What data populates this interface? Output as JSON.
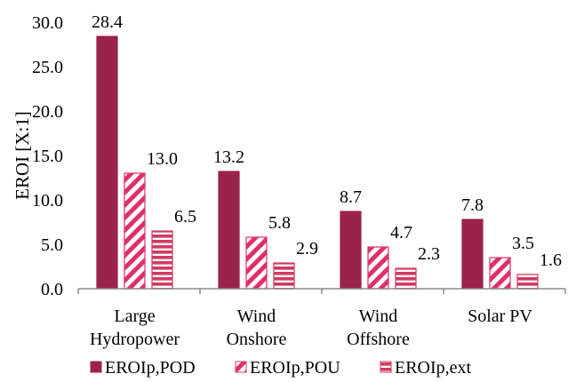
{
  "chart_data": {
    "type": "bar",
    "ylabel": "EROI [X:1]",
    "ylim": [
      0,
      30
    ],
    "yticks": [
      "0.0",
      "5.0",
      "10.0",
      "15.0",
      "20.0",
      "25.0",
      "30.0"
    ],
    "categories": [
      [
        "Large",
        "Hydropower"
      ],
      [
        "Wind",
        "Onshore"
      ],
      [
        "Wind",
        "Offshore"
      ],
      [
        "Solar PV"
      ]
    ],
    "series": [
      {
        "name": "EROIp,POD",
        "values": [
          28.4,
          13.2,
          8.7,
          7.8
        ],
        "labels": [
          "28.4",
          "13.2",
          "8.7",
          "7.8"
        ],
        "color": "#9b2248",
        "pattern": "solid"
      },
      {
        "name": "EROIp,POU",
        "values": [
          13.0,
          5.8,
          4.7,
          3.5
        ],
        "labels": [
          "13.0",
          "5.8",
          "4.7",
          "3.5"
        ],
        "color": "#e0306a",
        "pattern": "diagonal"
      },
      {
        "name": "EROIp,ext",
        "values": [
          6.5,
          2.9,
          2.3,
          1.6
        ],
        "labels": [
          "6.5",
          "2.9",
          "2.3",
          "1.6"
        ],
        "color": "#d13a60",
        "pattern": "horizontal"
      }
    ],
    "grid": false,
    "legend_position": "bottom"
  }
}
